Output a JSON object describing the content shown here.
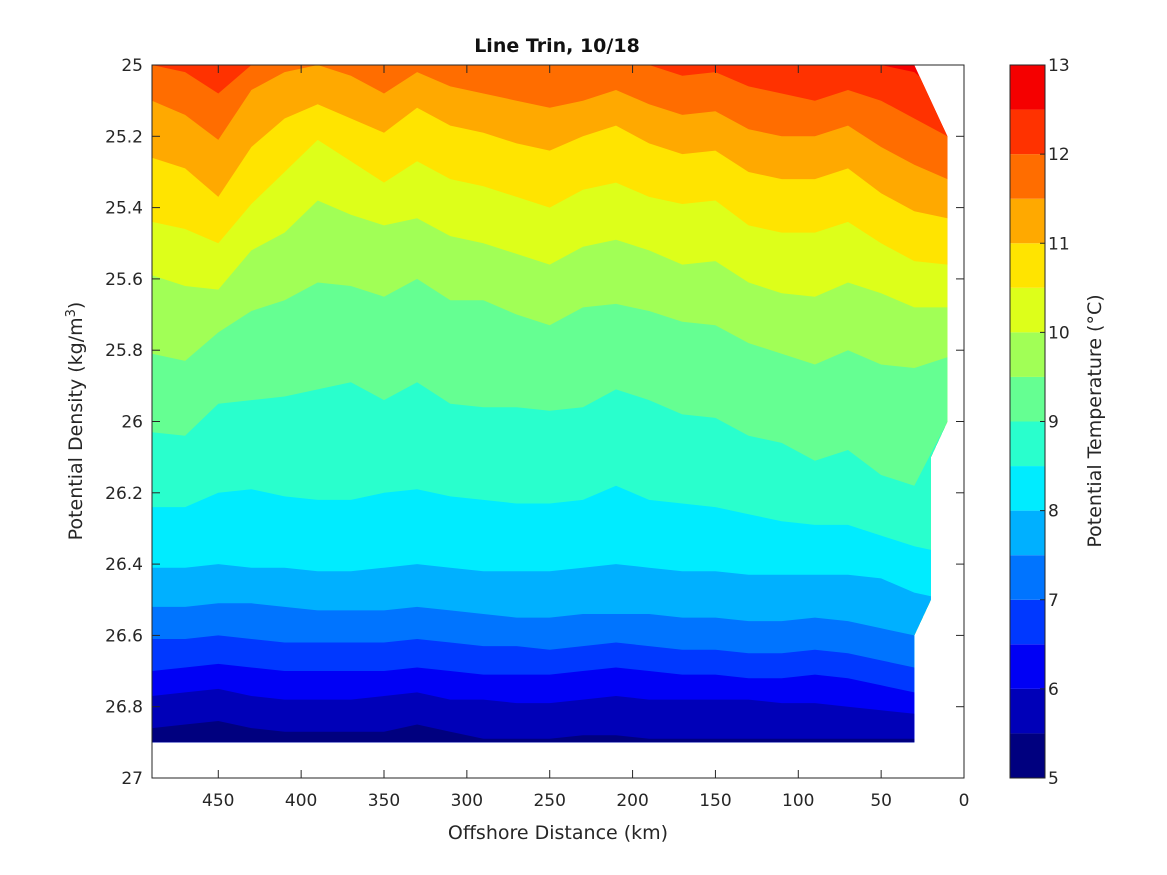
{
  "chart_data": {
    "type": "filled-contour",
    "title": "Line Trin, 10/18",
    "xlabel": "Offshore Distance (km)",
    "ylabel": "Potential Density (kg/m",
    "ylabel_sup": "3",
    "ylabel_end": ")",
    "colorbar_label": "Potential Temperature (°C)",
    "xlim": [
      490,
      0
    ],
    "x_reversed": true,
    "ylim": [
      25,
      27
    ],
    "y_reversed": true,
    "xticks": [
      450,
      400,
      350,
      300,
      250,
      200,
      150,
      100,
      50,
      0
    ],
    "xtick_labels": [
      "450",
      "400",
      "350",
      "300",
      "250",
      "200",
      "150",
      "100",
      "50",
      "0"
    ],
    "yticks": [
      25,
      25.2,
      25.4,
      25.6,
      25.8,
      26,
      26.2,
      26.4,
      26.6,
      26.8,
      27
    ],
    "ytick_labels": [
      "25",
      "25.2",
      "25.4",
      "25.6",
      "25.8",
      "26",
      "26.2",
      "26.4",
      "26.6",
      "26.8",
      "27"
    ],
    "colorbar_range": [
      5,
      13
    ],
    "colorbar_ticks": [
      5,
      6,
      7,
      8,
      9,
      10,
      11,
      12,
      13
    ],
    "colorbar_tick_labels": [
      "5",
      "6",
      "7",
      "8",
      "9",
      "10",
      "11",
      "12",
      "13"
    ],
    "contour_levels": [
      5,
      5.5,
      6,
      6.5,
      7,
      7.5,
      8,
      8.5,
      9,
      9.5,
      10,
      10.5,
      11,
      11.5,
      12,
      12.5,
      13
    ],
    "level_colors": [
      "#00007f",
      "#0000b8",
      "#0000f5",
      "#0038ff",
      "#0074ff",
      "#00b0ff",
      "#00ecff",
      "#29ffcd",
      "#65ff92",
      "#a1ff56",
      "#ddff1a",
      "#ffe400",
      "#ffa900",
      "#ff6d00",
      "#ff3200",
      "#f50000",
      "#b80000"
    ],
    "x_samples": [
      490,
      470,
      450,
      430,
      410,
      390,
      370,
      350,
      330,
      310,
      290,
      270,
      250,
      230,
      210,
      190,
      170,
      150,
      130,
      110,
      90,
      70,
      50,
      30,
      10
    ],
    "isopycnal_depths": [
      {
        "level": 5.5,
        "sigma": [
          26.86,
          26.85,
          26.84,
          26.86,
          26.87,
          26.87,
          26.87,
          26.87,
          26.85,
          26.87,
          26.89,
          26.89,
          26.89,
          26.88,
          26.88,
          26.89,
          26.89,
          26.89,
          26.89,
          26.89,
          26.89,
          26.89,
          26.89,
          26.89,
          null
        ]
      },
      {
        "level": 6.0,
        "sigma": [
          26.77,
          26.76,
          26.75,
          26.77,
          26.78,
          26.78,
          26.78,
          26.77,
          26.76,
          26.78,
          26.78,
          26.79,
          26.79,
          26.78,
          26.77,
          26.78,
          26.78,
          26.78,
          26.78,
          26.79,
          26.79,
          26.8,
          26.81,
          26.82,
          null
        ]
      },
      {
        "level": 6.5,
        "sigma": [
          26.7,
          26.69,
          26.68,
          26.69,
          26.7,
          26.7,
          26.7,
          26.7,
          26.69,
          26.7,
          26.71,
          26.71,
          26.71,
          26.7,
          26.69,
          26.7,
          26.71,
          26.71,
          26.72,
          26.72,
          26.71,
          26.72,
          26.74,
          26.76,
          null
        ]
      },
      {
        "level": 7.0,
        "sigma": [
          26.61,
          26.61,
          26.6,
          26.61,
          26.62,
          26.62,
          26.62,
          26.62,
          26.61,
          26.62,
          26.63,
          26.63,
          26.64,
          26.63,
          26.62,
          26.63,
          26.64,
          26.64,
          26.65,
          26.65,
          26.64,
          26.65,
          26.67,
          26.69,
          null
        ]
      },
      {
        "level": 7.5,
        "sigma": [
          26.52,
          26.52,
          26.51,
          26.51,
          26.52,
          26.53,
          26.53,
          26.53,
          26.52,
          26.53,
          26.54,
          26.55,
          26.55,
          26.54,
          26.54,
          26.54,
          26.55,
          26.55,
          26.56,
          26.56,
          26.55,
          26.56,
          26.58,
          26.6,
          null
        ]
      },
      {
        "level": 8.0,
        "sigma": [
          26.41,
          26.41,
          26.4,
          26.41,
          26.41,
          26.42,
          26.42,
          26.41,
          26.4,
          26.41,
          26.42,
          26.42,
          26.42,
          26.41,
          26.4,
          26.41,
          26.42,
          26.42,
          26.43,
          26.43,
          26.43,
          26.43,
          26.44,
          26.48,
          26.5
        ]
      },
      {
        "level": 8.5,
        "sigma": [
          26.24,
          26.24,
          26.2,
          26.19,
          26.21,
          26.22,
          26.22,
          26.2,
          26.19,
          26.21,
          26.22,
          26.23,
          26.23,
          26.22,
          26.18,
          26.22,
          26.23,
          26.24,
          26.26,
          26.28,
          26.29,
          26.29,
          26.32,
          26.35,
          26.37
        ]
      },
      {
        "level": 9.0,
        "sigma": [
          26.03,
          26.04,
          25.95,
          25.94,
          25.93,
          25.91,
          25.89,
          25.94,
          25.89,
          25.95,
          25.96,
          25.96,
          25.97,
          25.96,
          25.91,
          25.94,
          25.98,
          25.99,
          26.04,
          26.06,
          26.11,
          26.08,
          26.15,
          26.18,
          26.0
        ]
      },
      {
        "level": 9.5,
        "sigma": [
          25.81,
          25.83,
          25.75,
          25.69,
          25.66,
          25.61,
          25.62,
          25.65,
          25.6,
          25.66,
          25.66,
          25.7,
          25.73,
          25.68,
          25.67,
          25.69,
          25.72,
          25.73,
          25.78,
          25.81,
          25.84,
          25.8,
          25.84,
          25.85,
          25.82
        ]
      },
      {
        "level": 10.0,
        "sigma": [
          25.59,
          25.62,
          25.63,
          25.52,
          25.47,
          25.38,
          25.42,
          25.45,
          25.43,
          25.48,
          25.5,
          25.53,
          25.56,
          25.51,
          25.49,
          25.52,
          25.56,
          25.55,
          25.61,
          25.64,
          25.65,
          25.61,
          25.64,
          25.68,
          25.68
        ]
      },
      {
        "level": 10.5,
        "sigma": [
          25.44,
          25.46,
          25.5,
          25.39,
          25.3,
          25.21,
          25.27,
          25.33,
          25.27,
          25.32,
          25.34,
          25.37,
          25.4,
          25.35,
          25.33,
          25.37,
          25.39,
          25.38,
          25.45,
          25.47,
          25.47,
          25.44,
          25.5,
          25.55,
          25.56
        ]
      },
      {
        "level": 11.0,
        "sigma": [
          25.26,
          25.29,
          25.37,
          25.23,
          25.15,
          25.11,
          25.15,
          25.19,
          25.12,
          25.17,
          25.19,
          25.22,
          25.24,
          25.2,
          25.17,
          25.22,
          25.25,
          25.24,
          25.3,
          25.32,
          25.32,
          25.29,
          25.36,
          25.41,
          25.43
        ]
      },
      {
        "level": 11.5,
        "sigma": [
          25.1,
          25.14,
          25.21,
          25.07,
          25.02,
          25.0,
          25.03,
          25.08,
          25.02,
          25.06,
          25.08,
          25.1,
          25.12,
          25.1,
          25.07,
          25.11,
          25.14,
          25.13,
          25.18,
          25.2,
          25.2,
          25.17,
          25.23,
          25.28,
          25.32
        ]
      },
      {
        "level": 12.0,
        "sigma": [
          25.0,
          25.02,
          25.08,
          25.0,
          25.0,
          25.0,
          25.0,
          25.0,
          25.0,
          25.0,
          25.0,
          25.0,
          25.0,
          25.0,
          25.0,
          25.0,
          25.03,
          25.02,
          25.06,
          25.08,
          25.1,
          25.07,
          25.1,
          25.15,
          25.2
        ]
      },
      {
        "level": 12.5,
        "sigma": [
          25.0,
          25.0,
          25.0,
          25.0,
          25.0,
          25.0,
          25.0,
          25.0,
          25.0,
          25.0,
          25.0,
          25.0,
          25.0,
          25.0,
          25.0,
          25.0,
          25.0,
          25.0,
          25.0,
          25.0,
          25.0,
          25.0,
          25.0,
          25.02,
          25.1
        ]
      }
    ],
    "data_boundary": {
      "top_sigma": 25.0,
      "bottom_sigma": 26.9,
      "offshore_edge_km": 490,
      "nearshore_outline": [
        [
          30,
          25.0
        ],
        [
          10,
          25.2
        ],
        [
          10,
          26.0
        ],
        [
          20,
          26.1
        ],
        [
          20,
          26.5
        ],
        [
          30,
          26.6
        ],
        [
          30,
          26.9
        ]
      ]
    },
    "grid": false,
    "colorbar_placement": "right"
  }
}
